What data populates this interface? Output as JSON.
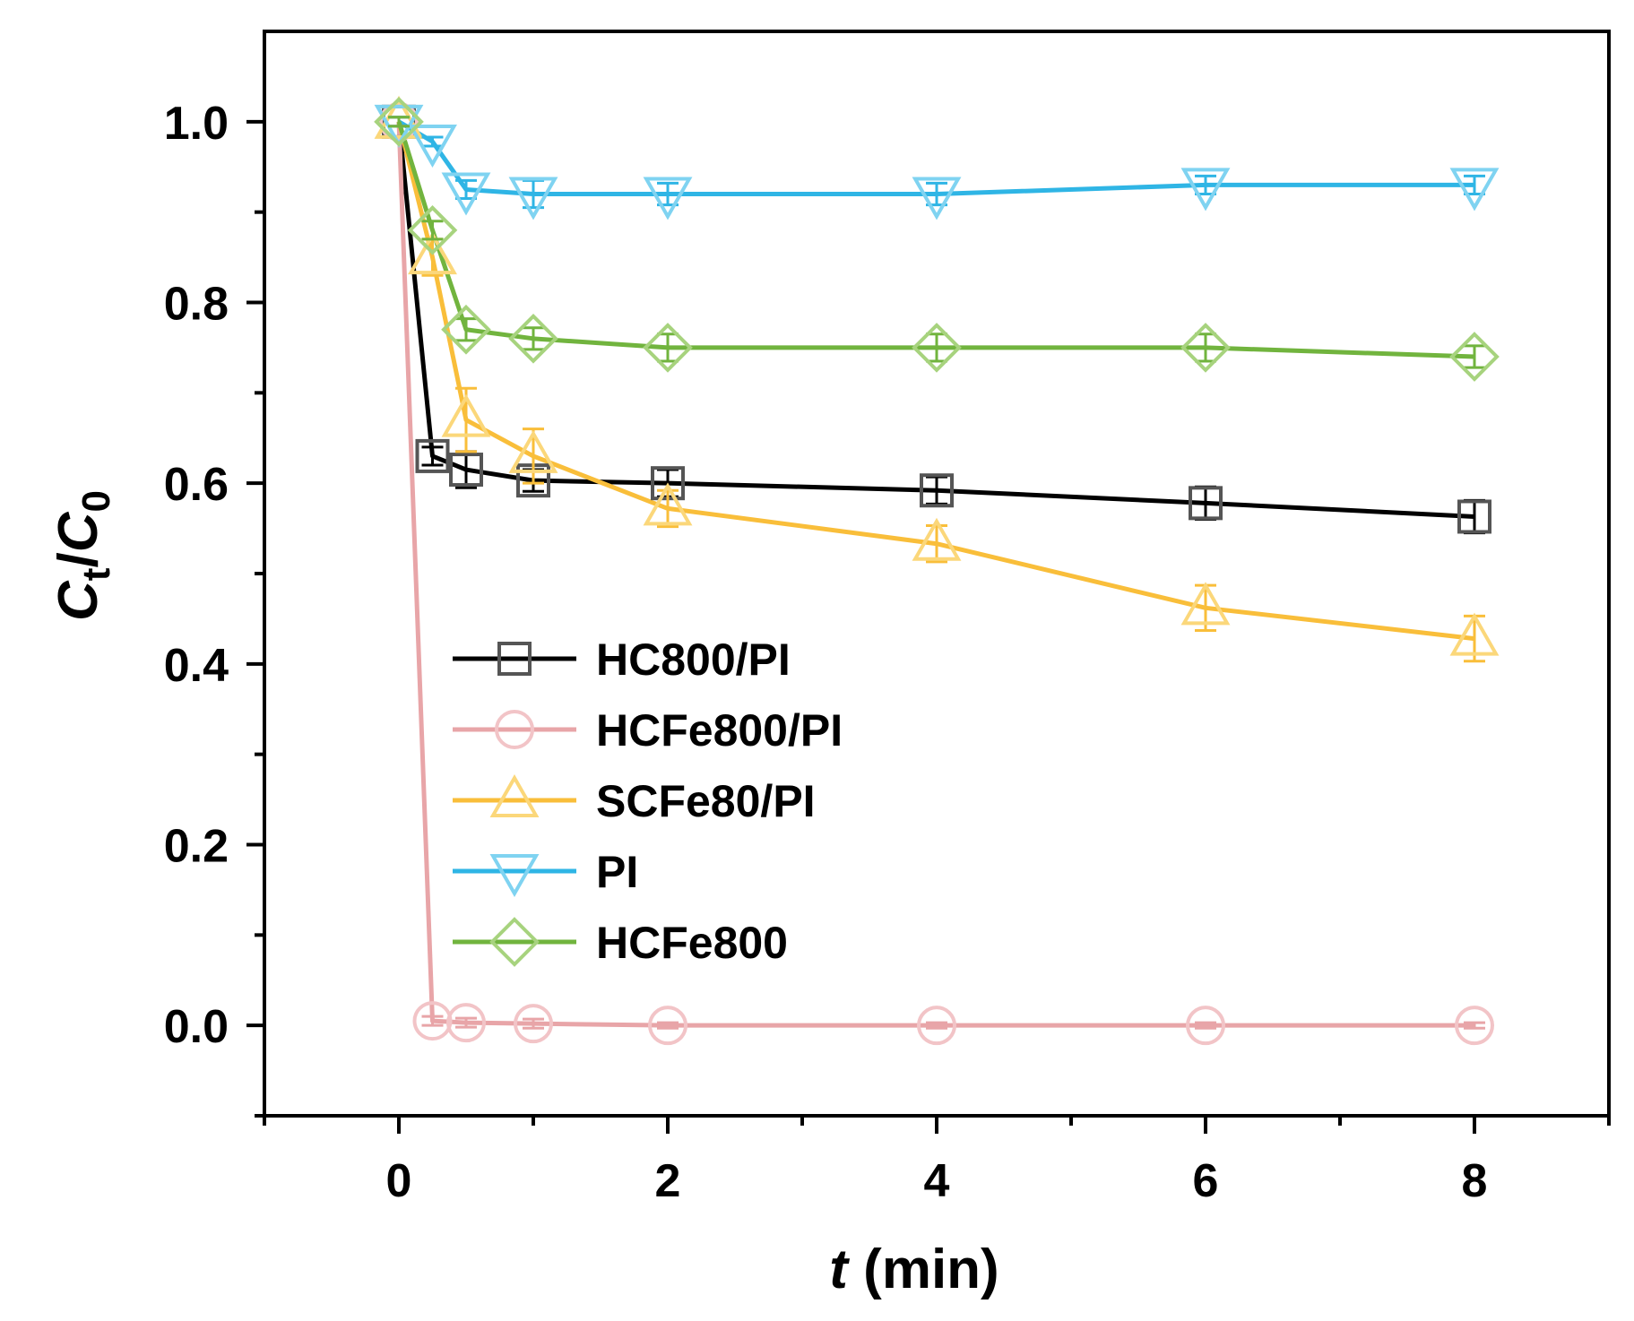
{
  "chart_data": {
    "type": "line",
    "title": "",
    "xlabel": {
      "italic": "t",
      "rest": " (min)"
    },
    "ylabel": {
      "main": "C",
      "sub1": "t",
      "sep": "/",
      "main2": "C",
      "sub2": "0"
    },
    "xlim": [
      -1,
      9
    ],
    "ylim": [
      -0.1,
      1.1
    ],
    "xticks": [
      0,
      2,
      4,
      6,
      8
    ],
    "xtick_labels": [
      "0",
      "2",
      "4",
      "6",
      "8"
    ],
    "xminor": [
      -1,
      1,
      3,
      5,
      7,
      9
    ],
    "yticks": [
      0.0,
      0.2,
      0.4,
      0.6,
      0.8,
      1.0
    ],
    "ytick_labels": [
      "0.0",
      "0.2",
      "0.4",
      "0.6",
      "0.8",
      "1.0"
    ],
    "yminor": [
      -0.1,
      0.1,
      0.3,
      0.5,
      0.7,
      0.9
    ],
    "grid": false,
    "legend_position": "lower-left",
    "x": [
      0,
      0.25,
      0.5,
      1,
      2,
      4,
      6,
      8
    ],
    "series": [
      {
        "name": "HC800/PI",
        "marker": "square",
        "color": "#000000",
        "marker_color": "#555555",
        "values": [
          1.0,
          0.63,
          0.615,
          0.603,
          0.6,
          0.592,
          0.578,
          0.563
        ],
        "errors": [
          0.005,
          0.01,
          0.02,
          0.012,
          0.015,
          0.015,
          0.018,
          0.018
        ]
      },
      {
        "name": "HCFe800/PI",
        "marker": "circle",
        "color": "#e8a5a8",
        "marker_color": "#f2c4c7",
        "values": [
          1.0,
          0.005,
          0.003,
          0.002,
          0.0,
          0.0,
          0.0,
          0.0
        ],
        "errors": [
          0.005,
          0.005,
          0.005,
          0.005,
          0.003,
          0.003,
          0.003,
          0.003
        ]
      },
      {
        "name": "SCFe80/PI",
        "marker": "triangle-up",
        "color": "#f9be3a",
        "marker_color": "#fbd77a",
        "values": [
          1.0,
          0.85,
          0.67,
          0.63,
          0.572,
          0.533,
          0.462,
          0.428
        ],
        "errors": [
          0.005,
          0.02,
          0.035,
          0.03,
          0.02,
          0.02,
          0.025,
          0.025
        ]
      },
      {
        "name": "PI",
        "marker": "triangle-down",
        "color": "#2fb5e5",
        "marker_color": "#7fd3f1",
        "values": [
          1.0,
          0.978,
          0.925,
          0.92,
          0.92,
          0.92,
          0.93,
          0.93
        ],
        "errors": [
          0.005,
          0.005,
          0.01,
          0.015,
          0.012,
          0.012,
          0.01,
          0.01
        ]
      },
      {
        "name": "HCFe800",
        "marker": "diamond",
        "color": "#71b43e",
        "marker_color": "#a7d37e",
        "values": [
          1.0,
          0.88,
          0.77,
          0.76,
          0.75,
          0.75,
          0.75,
          0.74
        ],
        "errors": [
          0.005,
          0.01,
          0.012,
          0.012,
          0.015,
          0.015,
          0.015,
          0.012
        ]
      }
    ],
    "point_x_overrides": {
      "HC800/PI": [
        0,
        0.25,
        0.5,
        1,
        2,
        4,
        6,
        8
      ],
      "HCFe800/PI": [
        0,
        0.25,
        0.5,
        1,
        2,
        4,
        6,
        8
      ],
      "SCFe80/PI": [
        0,
        0.25,
        0.5,
        1,
        2,
        4,
        6,
        8
      ],
      "PI": [
        0,
        0.25,
        0.5,
        1,
        2,
        4,
        6,
        8
      ],
      "HCFe800": [
        0,
        0.25,
        0.5,
        1,
        2,
        4,
        6,
        8
      ]
    }
  }
}
